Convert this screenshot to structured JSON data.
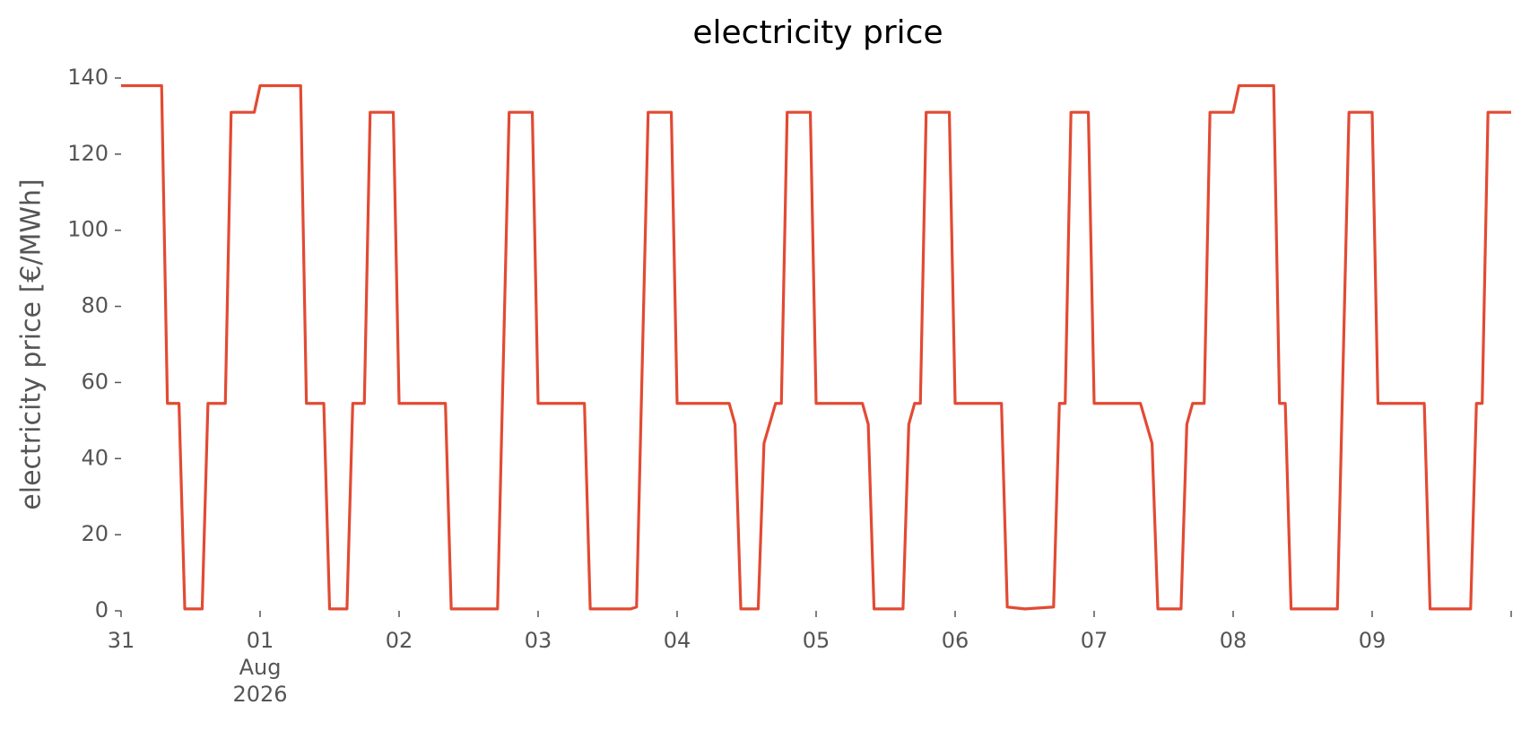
{
  "chart_data": {
    "type": "line",
    "title": "electricity price",
    "ylabel": "electricity price [€/MWh]",
    "color": "#e24a33",
    "grid": false,
    "xlim": [
      0,
      240
    ],
    "ylim": [
      0,
      140
    ],
    "xticks": [
      {
        "value": 0,
        "label": "31"
      },
      {
        "value": 24,
        "label": "01\nAug\n2026"
      },
      {
        "value": 48,
        "label": "02"
      },
      {
        "value": 72,
        "label": "03"
      },
      {
        "value": 96,
        "label": "04"
      },
      {
        "value": 120,
        "label": "05"
      },
      {
        "value": 144,
        "label": "06"
      },
      {
        "value": 168,
        "label": "07"
      },
      {
        "value": 192,
        "label": "08"
      },
      {
        "value": 216,
        "label": "09"
      },
      {
        "value": 240,
        "label": null
      }
    ],
    "yticks": [
      0,
      20,
      40,
      60,
      80,
      100,
      120,
      140
    ],
    "x": [
      0,
      7,
      8,
      10,
      11,
      14,
      15,
      18,
      19,
      23,
      24,
      31,
      32,
      35,
      36,
      39,
      40,
      42,
      43,
      47,
      48,
      56,
      57,
      65,
      67,
      71,
      72,
      80,
      81,
      88,
      89,
      91,
      95,
      96,
      105,
      106,
      107,
      110,
      111,
      113,
      114,
      115,
      119,
      120,
      128,
      129,
      130,
      135,
      136,
      137,
      138,
      139,
      143,
      144,
      152,
      153,
      156,
      161,
      162,
      163,
      164,
      167,
      168,
      176,
      178,
      179,
      183,
      184,
      185,
      187,
      188,
      192,
      193,
      199,
      200,
      201,
      202,
      210,
      212,
      216,
      217,
      225,
      226,
      233,
      234,
      235,
      236,
      240
    ],
    "values": [
      138,
      138,
      54.5,
      54.5,
      0.5,
      0.5,
      54.5,
      54.5,
      131,
      131,
      138,
      138,
      54.5,
      54.5,
      0.5,
      0.5,
      54.5,
      54.5,
      131,
      131,
      54.5,
      54.5,
      0.5,
      0.5,
      131,
      131,
      54.5,
      54.5,
      0.5,
      0.5,
      1,
      131,
      131,
      54.5,
      54.5,
      49,
      0.5,
      0.5,
      44,
      54.5,
      54.5,
      131,
      131,
      54.5,
      54.5,
      49,
      0.5,
      0.5,
      49,
      54.5,
      54.5,
      131,
      131,
      54.5,
      54.5,
      1,
      0.5,
      1,
      54.5,
      54.5,
      131,
      131,
      54.5,
      54.5,
      44,
      0.5,
      0.5,
      49,
      54.5,
      54.5,
      131,
      131,
      138,
      138,
      54.5,
      54.5,
      0.5,
      0.5,
      131,
      131,
      54.5,
      54.5,
      0.5,
      0.5,
      54.5,
      54.5,
      131,
      131
    ]
  }
}
